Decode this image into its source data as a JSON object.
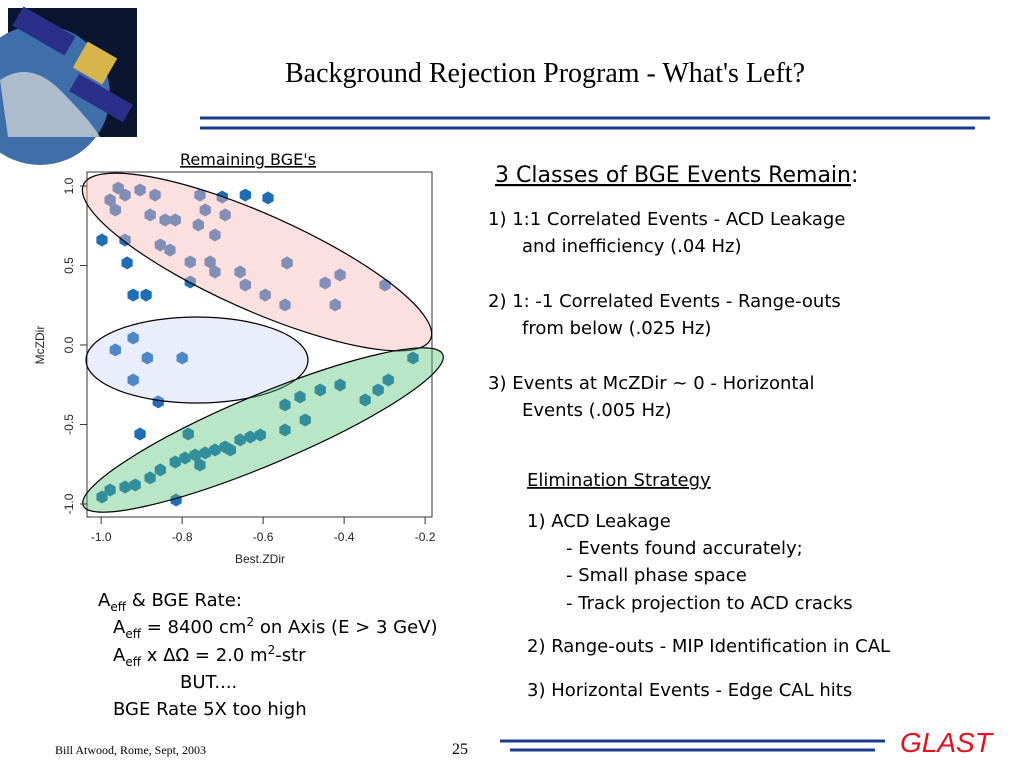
{
  "slide": {
    "title": "Background Rejection Program - What's Left?",
    "classes_heading": [
      "3 Classes of BGE Events Remain",
      ":"
    ],
    "classes": [
      [
        "1)  1:1 Correlated Events - ACD Leakage",
        "and inefficiency (.04 Hz)"
      ],
      [
        "2) 1: -1 Correlated Events - Range-outs",
        "from below (.025 Hz)"
      ],
      [
        "3)  Events at McZDir ~ 0  - Horizontal",
        "Events (.005 Hz)"
      ]
    ],
    "strategy_heading": "Elimination Strategy",
    "strategy": [
      "1) ACD Leakage",
      "- Events found accurately;",
      "- Small phase space",
      "- Track projection to ACD cracks",
      "2) Range-outs  - MIP Identification in CAL",
      "3) Horizontal Events - Edge CAL hits"
    ],
    "rate": [
      [
        "A",
        "eff",
        " & BGE Rate:"
      ],
      [
        "A",
        "eff",
        " =  8400 cm",
        "2",
        " on Axis (E > 3 GeV)"
      ],
      [
        "A",
        "eff",
        " x ",
        "ΔΩ",
        " = 2.0 m",
        "2",
        "-str"
      ],
      [
        "BUT...."
      ],
      [
        "BGE Rate 5X too high"
      ]
    ],
    "footer": {
      "author": "Bill Atwood,  Rome, Sept, 2003",
      "page": "25",
      "logo": "GLAST"
    }
  },
  "chart_data": {
    "type": "scatter",
    "title": "Remaining BGE's",
    "xlabel": "Best.ZDir",
    "ylabel": "McZDir",
    "color": "#1f6db6",
    "xlim": [
      -1.035,
      -0.183
    ],
    "ylim": [
      -1.082,
      1.088
    ],
    "xticks": [
      {
        "value": -1.0,
        "label": "-1.0"
      },
      -0.8,
      -0.6,
      -0.4,
      -0.2
    ],
    "yticks": [
      {
        "value": -1.0,
        "label": "-1.0"
      },
      -0.5,
      {
        "value": 0.0,
        "label": "0.0"
      },
      0.5,
      {
        "value": 1.0,
        "label": "1.0"
      }
    ],
    "x": [
      -0.958,
      -0.978,
      -0.941,
      -0.965,
      -0.904,
      -0.867,
      -0.879,
      -0.842,
      -0.817,
      -0.941,
      -0.854,
      -0.83,
      -0.756,
      -0.743,
      -0.701,
      -0.694,
      -0.76,
      -0.719,
      -0.644,
      -0.588,
      -0.78,
      -0.731,
      -0.78,
      -0.719,
      -0.657,
      -0.644,
      -0.595,
      -0.546,
      -0.447,
      -0.41,
      -0.422,
      -0.299,
      -0.541,
      -0.998,
      -0.936,
      -0.921,
      -0.889,
      -0.921,
      -0.965,
      -0.886,
      -0.8,
      -0.921,
      -0.859,
      -0.904,
      -0.785,
      -0.815,
      -0.998,
      -0.978,
      -0.941,
      -0.916,
      -0.879,
      -0.854,
      -0.817,
      -0.793,
      -0.768,
      -0.743,
      -0.719,
      -0.694,
      -0.657,
      -0.632,
      -0.607,
      -0.546,
      -0.509,
      -0.459,
      -0.41,
      -0.348,
      -0.316,
      -0.291,
      -0.23,
      -0.546,
      -0.496,
      -0.681,
      -0.756
    ],
    "values": [
      0.987,
      0.912,
      0.943,
      0.849,
      0.975,
      0.943,
      0.818,
      0.786,
      0.786,
      0.66,
      0.629,
      0.597,
      0.943,
      0.849,
      0.931,
      0.818,
      0.755,
      0.692,
      0.943,
      0.925,
      0.522,
      0.522,
      0.396,
      0.459,
      0.459,
      0.377,
      0.314,
      0.252,
      0.39,
      0.44,
      0.252,
      0.377,
      0.516,
      0.66,
      0.516,
      0.314,
      0.314,
      0.044,
      -0.031,
      -0.082,
      -0.082,
      -0.22,
      -0.358,
      -0.56,
      -0.56,
      -0.975,
      -0.956,
      -0.912,
      -0.893,
      -0.881,
      -0.836,
      -0.786,
      -0.736,
      -0.711,
      -0.692,
      -0.679,
      -0.66,
      -0.642,
      -0.597,
      -0.579,
      -0.566,
      -0.377,
      -0.327,
      -0.283,
      -0.252,
      -0.346,
      -0.283,
      -0.22,
      -0.082,
      -0.535,
      -0.472,
      -0.66,
      -0.755
    ]
  }
}
